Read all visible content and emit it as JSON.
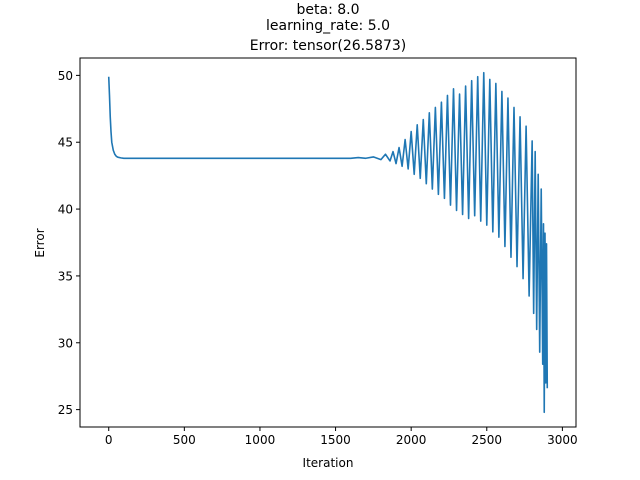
{
  "chart_data": {
    "type": "line",
    "title_lines": [
      "beta: 8.0",
      "learning_rate: 5.0",
      "Error: tensor(26.5873)"
    ],
    "xlabel": "Iteration",
    "ylabel": "Error",
    "xlim": [
      -190,
      3090
    ],
    "ylim": [
      23.7,
      51.3
    ],
    "x_ticks": [
      0,
      500,
      1000,
      1500,
      2000,
      2500,
      3000
    ],
    "y_ticks": [
      25,
      30,
      35,
      40,
      45,
      50
    ],
    "x_tick_labels": [
      "0",
      "500",
      "1000",
      "1500",
      "2000",
      "2500",
      "3000"
    ],
    "y_tick_labels": [
      "25",
      "30",
      "35",
      "40",
      "45",
      "50"
    ],
    "grid": false,
    "series": [
      {
        "color": "#1f77b4",
        "x": [
          0,
          5,
          10,
          15,
          20,
          30,
          40,
          50,
          60,
          80,
          100,
          150,
          200,
          300,
          400,
          500,
          600,
          700,
          800,
          900,
          1000,
          1100,
          1200,
          1300,
          1400,
          1500,
          1600,
          1650,
          1700,
          1750,
          1800,
          1830,
          1860,
          1880,
          1900,
          1920,
          1940,
          1960,
          1980,
          2000,
          2020,
          2040,
          2060,
          2080,
          2100,
          2120,
          2140,
          2160,
          2180,
          2200,
          2220,
          2240,
          2260,
          2280,
          2300,
          2320,
          2340,
          2360,
          2380,
          2400,
          2420,
          2440,
          2460,
          2480,
          2500,
          2520,
          2540,
          2560,
          2580,
          2600,
          2620,
          2640,
          2660,
          2680,
          2700,
          2720,
          2740,
          2760,
          2780,
          2800,
          2810,
          2820,
          2830,
          2840,
          2850,
          2860,
          2870,
          2875,
          2880,
          2885,
          2890,
          2895,
          2900
        ],
        "y": [
          49.9,
          48.5,
          46.9,
          45.8,
          45.0,
          44.4,
          44.1,
          43.95,
          43.88,
          43.83,
          43.8,
          43.8,
          43.8,
          43.8,
          43.8,
          43.8,
          43.8,
          43.8,
          43.8,
          43.8,
          43.8,
          43.8,
          43.8,
          43.8,
          43.8,
          43.8,
          43.8,
          43.85,
          43.8,
          43.9,
          43.7,
          44.1,
          43.6,
          44.3,
          43.4,
          44.6,
          43.2,
          45.2,
          43.0,
          45.8,
          42.6,
          46.3,
          42.3,
          46.7,
          41.9,
          47.2,
          41.5,
          47.6,
          41.1,
          48.0,
          40.8,
          48.5,
          40.3,
          49.0,
          39.9,
          48.6,
          39.6,
          49.2,
          39.3,
          49.6,
          39.5,
          49.9,
          39.1,
          50.2,
          38.8,
          49.7,
          38.3,
          49.4,
          37.9,
          48.8,
          37.2,
          48.3,
          36.4,
          47.6,
          35.7,
          46.9,
          34.8,
          46.2,
          33.5,
          45.1,
          32.2,
          44.3,
          31.0,
          42.6,
          29.3,
          41.5,
          28.4,
          38.9,
          24.8,
          38.2,
          27.0,
          37.4,
          26.6
        ]
      }
    ]
  }
}
